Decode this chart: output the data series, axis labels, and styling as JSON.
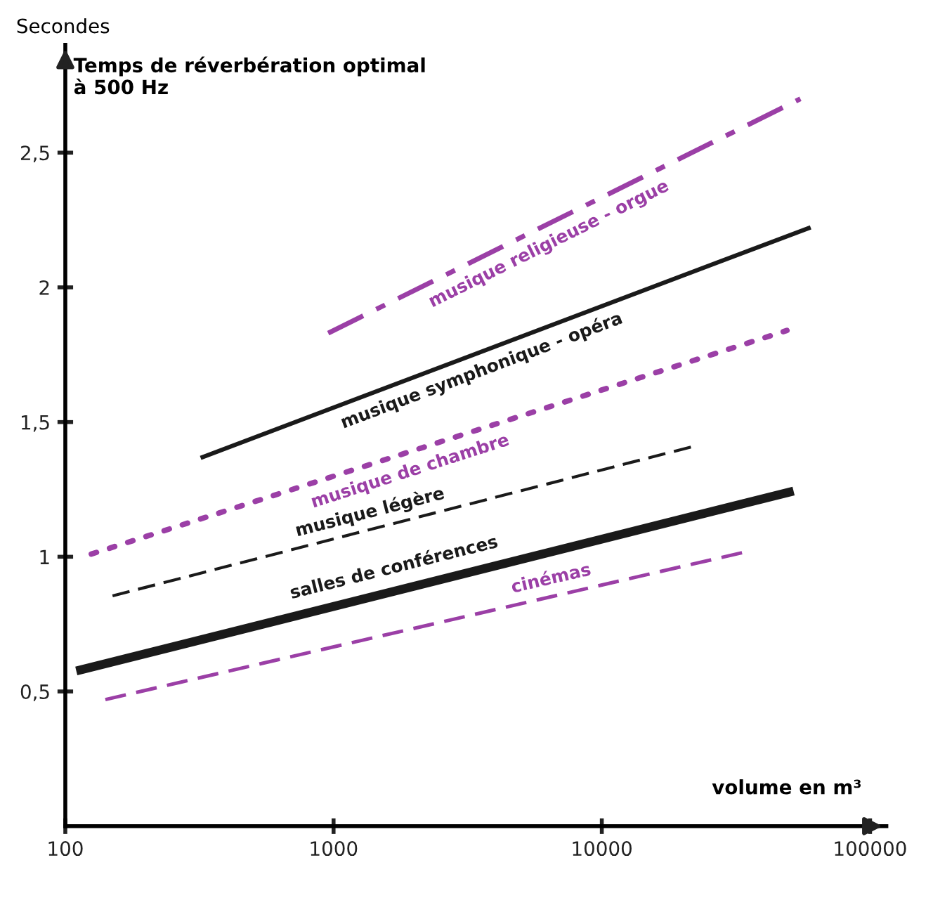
{
  "chart_data": {
    "type": "line",
    "title": "Temps de réverbération optimal\nà 500 Hz",
    "ylabel": "Secondes",
    "xlabel": "volume en m³",
    "log": "x",
    "xlim": [
      100,
      115000
    ],
    "ylim": [
      0,
      2.9
    ],
    "xticks": [
      100,
      1000,
      10000,
      100000
    ],
    "yticks": [
      {
        "value": 0.5,
        "label": "0,5"
      },
      {
        "value": 1,
        "label": "1"
      },
      {
        "value": 1.5,
        "label": "1,5"
      },
      {
        "value": 2,
        "label": "2"
      },
      {
        "value": 2.5,
        "label": "2,5"
      }
    ],
    "grid": false,
    "series": [
      {
        "name": "musique religieuse - orgue",
        "color": "#9b3fa6",
        "line_style": "dashdot",
        "x": [
          955,
          55000
        ],
        "values": [
          1.83,
          2.7
        ]
      },
      {
        "name": "musique symphonique - opéra",
        "color": "#1a1a1a",
        "line_style": "solid",
        "x": [
          325,
          59000
        ],
        "values": [
          1.37,
          2.22
        ]
      },
      {
        "name": "musique de chambre",
        "color": "#9b3fa6",
        "line_style": "dotted",
        "x": [
          125,
          49000
        ],
        "values": [
          1.01,
          1.84
        ]
      },
      {
        "name": "musique légère",
        "color": "#1a1a1a",
        "line_style": "dashed",
        "x": [
          150,
          22000
        ],
        "values": [
          0.855,
          1.41
        ]
      },
      {
        "name": "salles de conférences",
        "color": "#1a1a1a",
        "line_style": "solid",
        "x": [
          114,
          50000
        ],
        "values": [
          0.58,
          1.24
        ]
      },
      {
        "name": "cinémas",
        "color": "#9b3fa6",
        "line_style": "dashed",
        "x": [
          141,
          35000
        ],
        "values": [
          0.47,
          1.02
        ]
      }
    ]
  }
}
